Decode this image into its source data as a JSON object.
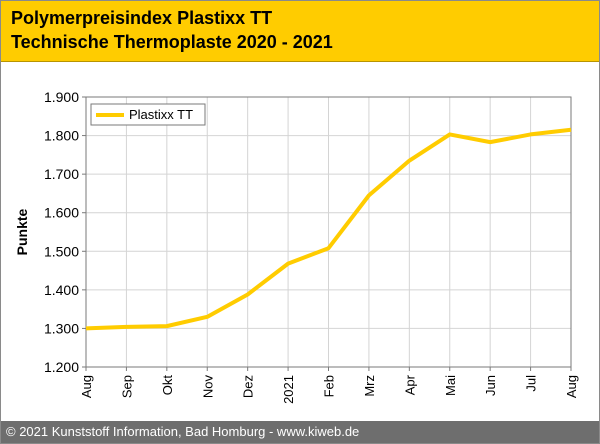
{
  "header": {
    "title_line1": "Polymerpreisindex Plastixx TT",
    "title_line2": "Technische Thermoplaste 2020 - 2021"
  },
  "footer": {
    "copyright": "© 2021 Kunststoff Information, Bad Homburg - www.kiweb.de"
  },
  "colors": {
    "header_bg": "#ffcc00",
    "series_line": "#ffcc00",
    "footer_bg": "#6e6e6e"
  },
  "chart_data": {
    "type": "line",
    "title": "",
    "xlabel": "",
    "ylabel": "Punkte",
    "categories": [
      "Aug",
      "Sep",
      "Okt",
      "Nov",
      "Dez",
      "2021",
      "Feb",
      "Mrz",
      "Apr",
      "Mai",
      "Jun",
      "Jul",
      "Aug"
    ],
    "series": [
      {
        "name": "Plastixx TT",
        "values": [
          1300,
          1304,
          1306,
          1330,
          1388,
          1468,
          1508,
          1645,
          1735,
          1803,
          1783,
          1803,
          1815
        ]
      }
    ],
    "ylim": [
      1200,
      1900
    ],
    "yticks": [
      1200,
      1300,
      1400,
      1500,
      1600,
      1700,
      1800,
      1900
    ],
    "ytick_labels": [
      "1.200",
      "1.300",
      "1.400",
      "1.500",
      "1.600",
      "1.700",
      "1.800",
      "1.900"
    ],
    "grid": true,
    "legend_position": "top-left"
  }
}
